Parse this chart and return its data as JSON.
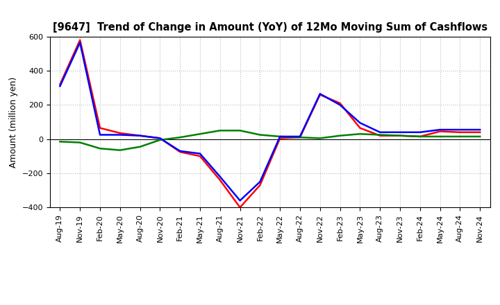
{
  "title": "[9647]  Trend of Change in Amount (YoY) of 12Mo Moving Sum of Cashflows",
  "ylabel": "Amount (million yen)",
  "background_color": "#ffffff",
  "grid_color": "#bbbbbb",
  "ylim": [
    -400,
    600
  ],
  "yticks": [
    -400,
    -200,
    0,
    200,
    400,
    600
  ],
  "x_labels": [
    "Aug-19",
    "Nov-19",
    "Feb-20",
    "May-20",
    "Aug-20",
    "Nov-20",
    "Feb-21",
    "May-21",
    "Aug-21",
    "Nov-21",
    "Feb-22",
    "May-22",
    "Aug-22",
    "Nov-22",
    "Feb-23",
    "May-23",
    "Aug-23",
    "Nov-23",
    "Feb-24",
    "May-24",
    "Aug-24",
    "Nov-24"
  ],
  "operating": [
    320,
    580,
    65,
    35,
    20,
    5,
    -75,
    -100,
    -240,
    -400,
    -270,
    5,
    10,
    260,
    210,
    65,
    20,
    20,
    15,
    45,
    40,
    40
  ],
  "investing": [
    -15,
    -20,
    -55,
    -65,
    -45,
    -5,
    10,
    30,
    50,
    50,
    25,
    15,
    10,
    5,
    20,
    30,
    25,
    20,
    15,
    15,
    15,
    15
  ],
  "free": [
    310,
    565,
    25,
    25,
    20,
    5,
    -70,
    -85,
    -220,
    -360,
    -250,
    15,
    15,
    265,
    200,
    95,
    40,
    40,
    40,
    55,
    55,
    55
  ],
  "op_color": "#ff0000",
  "inv_color": "#008000",
  "free_color": "#0000ff",
  "line_width": 1.8,
  "title_fontsize": 10.5,
  "ylabel_fontsize": 9,
  "tick_fontsize": 8
}
